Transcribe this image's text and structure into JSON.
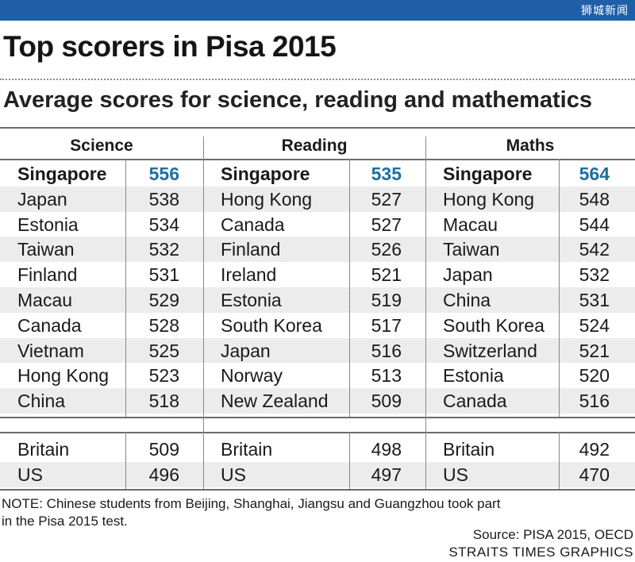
{
  "watermark": "狮城新闻",
  "title": "Top scorers in Pisa 2015",
  "subtitle": "Average scores for science, reading and mathematics",
  "colors": {
    "topbar": "#1f5fa8",
    "top_score": "#1e6fa0",
    "band": "#ececec"
  },
  "chart_data": {
    "type": "table",
    "columns": [
      {
        "header": "Science",
        "top10": [
          {
            "country": "Singapore",
            "score": 556
          },
          {
            "country": "Japan",
            "score": 538
          },
          {
            "country": "Estonia",
            "score": 534
          },
          {
            "country": "Taiwan",
            "score": 532
          },
          {
            "country": "Finland",
            "score": 531
          },
          {
            "country": "Macau",
            "score": 529
          },
          {
            "country": "Canada",
            "score": 528
          },
          {
            "country": "Vietnam",
            "score": 525
          },
          {
            "country": "Hong Kong",
            "score": 523
          },
          {
            "country": "China",
            "score": 518
          }
        ],
        "others": [
          {
            "country": "Britain",
            "score": 509
          },
          {
            "country": "US",
            "score": 496
          }
        ]
      },
      {
        "header": "Reading",
        "top10": [
          {
            "country": "Singapore",
            "score": 535
          },
          {
            "country": "Hong Kong",
            "score": 527
          },
          {
            "country": "Canada",
            "score": 527
          },
          {
            "country": "Finland",
            "score": 526
          },
          {
            "country": "Ireland",
            "score": 521
          },
          {
            "country": "Estonia",
            "score": 519
          },
          {
            "country": "South Korea",
            "score": 517
          },
          {
            "country": "Japan",
            "score": 516
          },
          {
            "country": "Norway",
            "score": 513
          },
          {
            "country": "New Zealand",
            "score": 509
          }
        ],
        "others": [
          {
            "country": "Britain",
            "score": 498
          },
          {
            "country": "US",
            "score": 497
          }
        ]
      },
      {
        "header": "Maths",
        "top10": [
          {
            "country": "Singapore",
            "score": 564
          },
          {
            "country": "Hong Kong",
            "score": 548
          },
          {
            "country": "Macau",
            "score": 544
          },
          {
            "country": "Taiwan",
            "score": 542
          },
          {
            "country": "Japan",
            "score": 532
          },
          {
            "country": "China",
            "score": 531
          },
          {
            "country": "South Korea",
            "score": 524
          },
          {
            "country": "Switzerland",
            "score": 521
          },
          {
            "country": "Estonia",
            "score": 520
          },
          {
            "country": "Canada",
            "score": 516
          }
        ],
        "others": [
          {
            "country": "Britain",
            "score": 492
          },
          {
            "country": "US",
            "score": 470
          }
        ]
      }
    ]
  },
  "note": "NOTE: Chinese students from Beijing, Shanghai, Jiangsu and Guangzhou took part in the Pisa 2015 test.",
  "source": "Source: PISA 2015, OECD",
  "credit": "STRAITS TIMES GRAPHICS"
}
